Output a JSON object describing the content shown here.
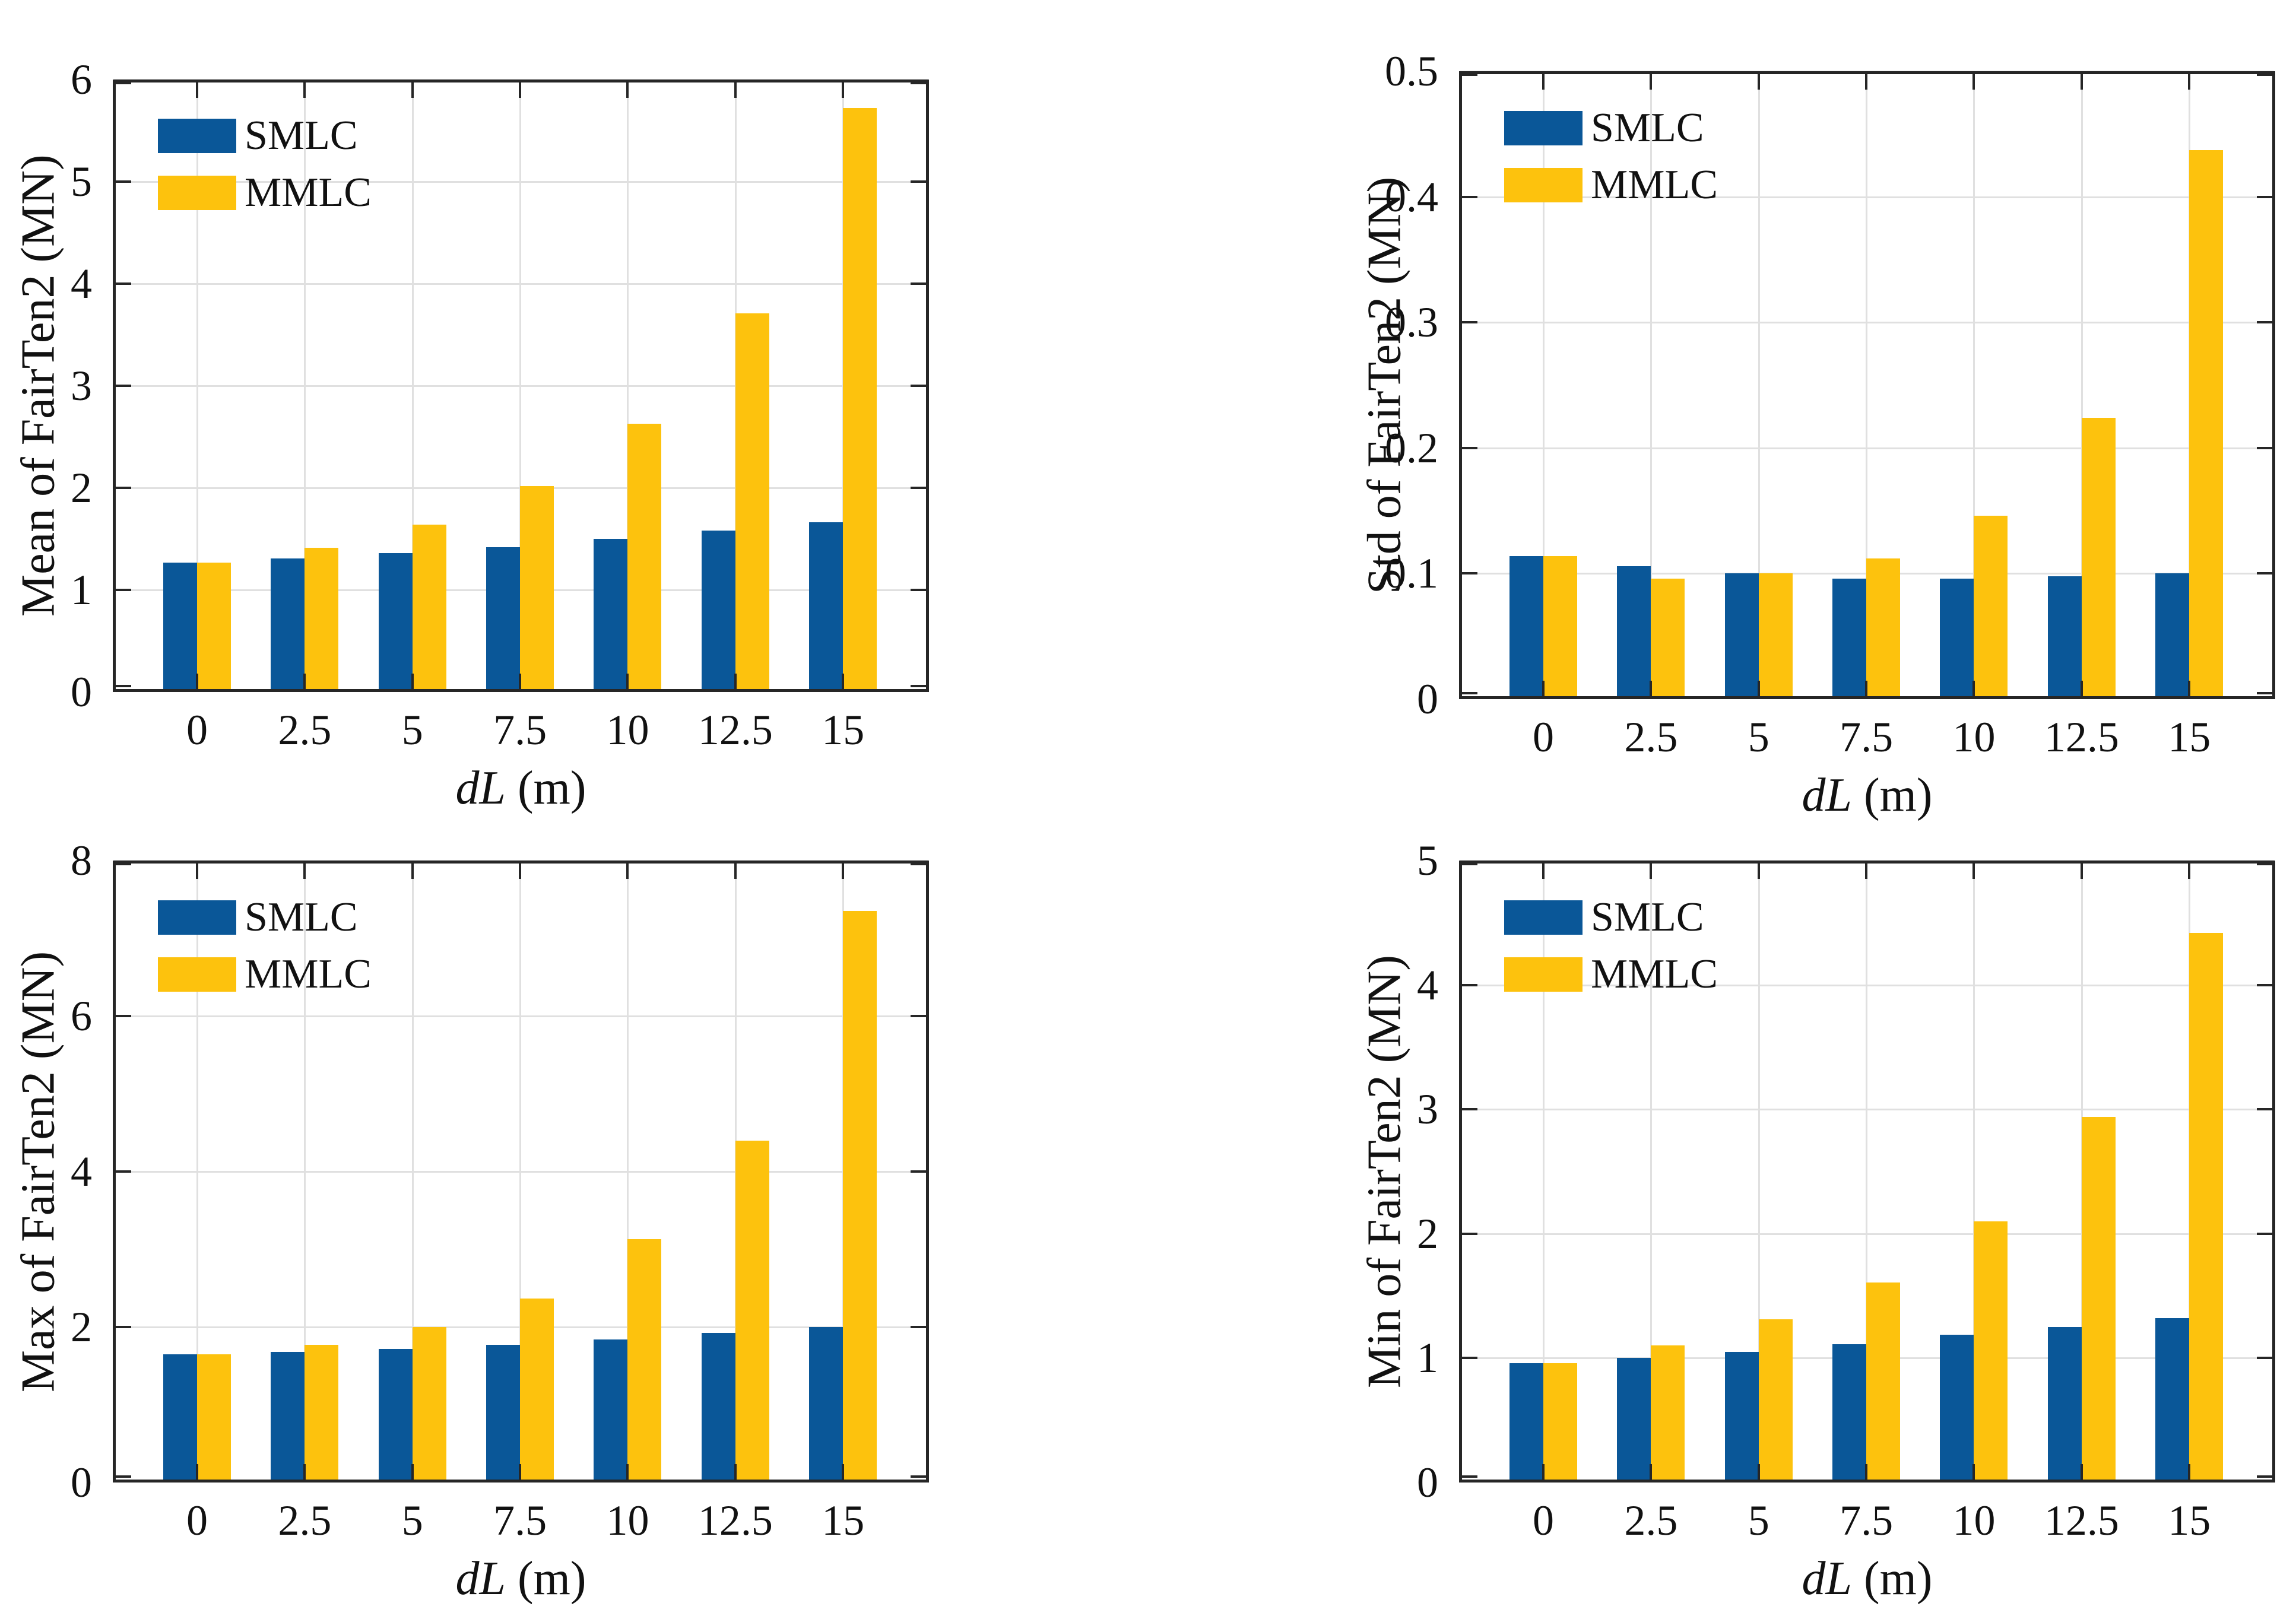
{
  "figure": {
    "background": "#FFFFFF"
  },
  "colors": {
    "smlc": "#0A5798",
    "mmlc": "#FDC20D",
    "grid": "#E0E0E0",
    "axis": "#262626",
    "text": "#111111"
  },
  "legend": {
    "labels": [
      "SMLC",
      "MMLC"
    ]
  },
  "xlabel": {
    "italic": "dL",
    "rest": " (m)"
  },
  "chart_data": [
    {
      "type": "bar",
      "name": "mean",
      "title": "",
      "ylabel": "Mean of FairTen2 (MN)",
      "xlabel": "dL (m)",
      "categories": [
        "0",
        "2.5",
        "5",
        "7.5",
        "10",
        "12.5",
        "15"
      ],
      "series": [
        {
          "name": "SMLC",
          "values": [
            1.27,
            1.31,
            1.36,
            1.42,
            1.5,
            1.58,
            1.66
          ]
        },
        {
          "name": "MMLC",
          "values": [
            1.27,
            1.41,
            1.64,
            2.02,
            2.63,
            3.71,
            5.72
          ]
        }
      ],
      "ylim": [
        0,
        6
      ],
      "yticks": [
        "0",
        "1",
        "2",
        "3",
        "4",
        "5",
        "6"
      ],
      "grid": true,
      "legend_position": "top-left"
    },
    {
      "type": "bar",
      "name": "std",
      "title": "",
      "ylabel": "Std of FairTen2 (MN)",
      "xlabel": "dL (m)",
      "categories": [
        "0",
        "2.5",
        "5",
        "7.5",
        "10",
        "12.5",
        "15"
      ],
      "series": [
        {
          "name": "SMLC",
          "values": [
            0.114,
            0.106,
            0.1,
            0.096,
            0.096,
            0.098,
            0.1
          ]
        },
        {
          "name": "MMLC",
          "values": [
            0.114,
            0.096,
            0.1,
            0.112,
            0.146,
            0.224,
            0.437
          ]
        }
      ],
      "ylim": [
        0,
        0.5
      ],
      "yticks": [
        "0",
        "0.1",
        "0.2",
        "0.3",
        "0.4",
        "0.5"
      ],
      "grid": true,
      "legend_position": "top-left"
    },
    {
      "type": "bar",
      "name": "max",
      "title": "",
      "ylabel": "Max of FairTen2 (MN)",
      "xlabel": "dL (m)",
      "categories": [
        "0",
        "2.5",
        "5",
        "7.5",
        "10",
        "12.5",
        "15"
      ],
      "series": [
        {
          "name": "SMLC",
          "values": [
            1.65,
            1.68,
            1.72,
            1.77,
            1.84,
            1.92,
            2.0
          ]
        },
        {
          "name": "MMLC",
          "values": [
            1.65,
            1.77,
            2.0,
            2.37,
            3.13,
            4.4,
            7.35
          ]
        }
      ],
      "ylim": [
        0,
        8
      ],
      "yticks": [
        "0",
        "2",
        "4",
        "6",
        "8"
      ],
      "grid": true,
      "legend_position": "top-left"
    },
    {
      "type": "bar",
      "name": "min",
      "title": "",
      "ylabel": "Min of FairTen2 (MN)",
      "xlabel": "dL (m)",
      "categories": [
        "0",
        "2.5",
        "5",
        "7.5",
        "10",
        "12.5",
        "15"
      ],
      "series": [
        {
          "name": "SMLC",
          "values": [
            0.96,
            1.0,
            1.05,
            1.11,
            1.19,
            1.25,
            1.32
          ]
        },
        {
          "name": "MMLC",
          "values": [
            0.96,
            1.1,
            1.31,
            1.61,
            2.1,
            2.94,
            4.42
          ]
        }
      ],
      "ylim": [
        0,
        5
      ],
      "yticks": [
        "0",
        "1",
        "2",
        "3",
        "4",
        "5"
      ],
      "grid": true,
      "legend_position": "top-left"
    }
  ]
}
